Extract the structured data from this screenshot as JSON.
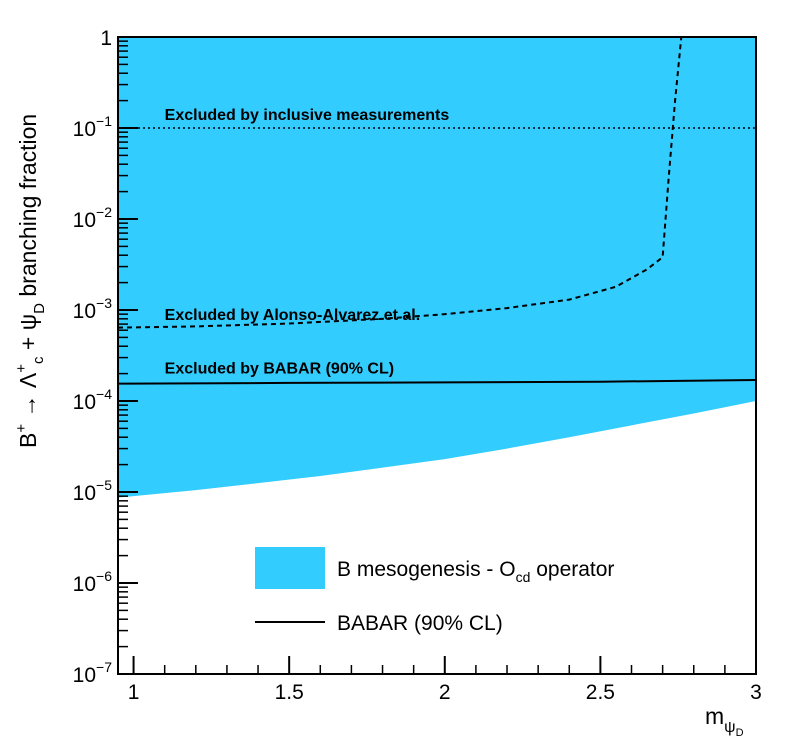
{
  "chart_data": {
    "type": "area",
    "x_scale": "linear",
    "y_scale": "log",
    "xlim": [
      0.95,
      3.0
    ],
    "ylim": [
      1e-07,
      1
    ],
    "x_ticks": [
      1,
      1.5,
      2,
      2.5,
      3
    ],
    "x_tick_labels": [
      "1",
      "1.5",
      "2",
      "2.5",
      "3"
    ],
    "y_ticks": [
      {
        "value": 1e-07,
        "base": "10",
        "exp": "−7"
      },
      {
        "value": 1e-06,
        "base": "10",
        "exp": "−6"
      },
      {
        "value": 1e-05,
        "base": "10",
        "exp": "−5"
      },
      {
        "value": 0.0001,
        "base": "10",
        "exp": "−4"
      },
      {
        "value": 0.001,
        "base": "10",
        "exp": "−3"
      },
      {
        "value": 0.01,
        "base": "10",
        "exp": "−2"
      },
      {
        "value": 0.1,
        "base": "10",
        "exp": "−1"
      },
      {
        "value": 1,
        "base": "1",
        "exp": ""
      }
    ],
    "xlabel": {
      "main": "m",
      "sub": "ψ",
      "subsub": "D"
    },
    "ylabel": {
      "text1": "B",
      "sup1": "+",
      "arrow": " → Λ",
      "sub2": "c",
      "sup2": "+",
      "text3": " + ψ",
      "sub3": "D",
      "text4": "branching fraction"
    },
    "series": [
      {
        "name": "B mesogenesis - O_cd operator",
        "kind": "band",
        "color": "#33ccff",
        "lower": {
          "x": [
            0.95,
            1.0,
            1.2,
            1.4,
            1.6,
            1.8,
            2.0,
            2.2,
            2.4,
            2.6,
            2.8,
            3.0
          ],
          "y": [
            8.7e-06,
            9e-06,
            1.05e-05,
            1.25e-05,
            1.5e-05,
            1.85e-05,
            2.3e-05,
            3e-05,
            4e-05,
            5.4e-05,
            7.3e-05,
            0.0001
          ]
        },
        "upper": 1
      },
      {
        "name": "BABAR (90% CL)",
        "kind": "line",
        "style": "solid",
        "color": "#000000",
        "x": [
          0.95,
          1.5,
          2.0,
          2.5,
          3.0
        ],
        "y": [
          0.000155,
          0.000158,
          0.00016,
          0.000163,
          0.00017
        ]
      },
      {
        "kind": "line",
        "style": "dashed",
        "color": "#000000",
        "x": [
          0.95,
          1.2,
          1.5,
          1.8,
          2.0,
          2.2,
          2.4,
          2.55,
          2.65,
          2.7,
          2.72,
          2.74,
          2.76
        ],
        "y": [
          0.00064,
          0.00066,
          0.00071,
          0.0008,
          0.0009,
          0.00105,
          0.0013,
          0.0018,
          0.0028,
          0.0038,
          0.03,
          0.2,
          1.0
        ]
      },
      {
        "kind": "line",
        "style": "dotted",
        "color": "#000000",
        "x": [
          0.95,
          3.0
        ],
        "y": [
          0.1,
          0.1
        ]
      }
    ],
    "annotations": [
      {
        "text": "Excluded by inclusive measurements",
        "x": 1.01,
        "y": 0.125
      },
      {
        "text": "Excluded by Alonso-Alvarez et al.",
        "x": 1.01,
        "y": 0.0008
      },
      {
        "text": "Excluded by BABAR (90% CL)",
        "x": 1.01,
        "y": 0.000205
      }
    ],
    "legend": {
      "placement": "bottom-right",
      "entries": [
        {
          "kind": "box",
          "color": "#33ccff",
          "main": "B mesogenesis - O",
          "sub": "cd",
          "tail": " operator"
        },
        {
          "kind": "line",
          "color": "#000000",
          "main": "BABAR (90% CL)",
          "sub": "",
          "tail": ""
        }
      ]
    }
  }
}
